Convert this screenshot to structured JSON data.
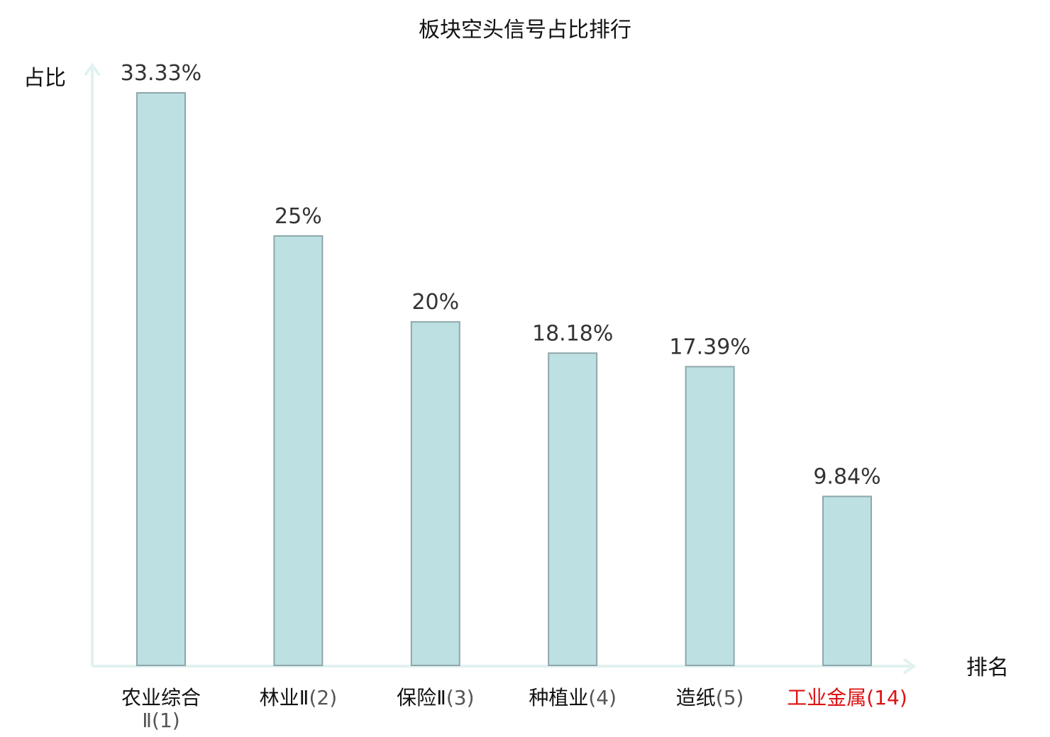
{
  "chart_data": {
    "type": "bar",
    "title": "板块空头信号占比排行",
    "ylabel": "占比",
    "xlabel": "排名",
    "ylim": [
      0,
      35
    ],
    "grid": false,
    "categories": [
      {
        "name": "农业综合Ⅱ",
        "rank": "(1)",
        "highlight": false
      },
      {
        "name": "林业Ⅱ",
        "rank": "(2)",
        "highlight": false
      },
      {
        "name": "保险Ⅱ",
        "rank": "(3)",
        "highlight": false
      },
      {
        "name": "种植业",
        "rank": "(4)",
        "highlight": false
      },
      {
        "name": "造纸",
        "rank": "(5)",
        "highlight": false
      },
      {
        "name": "工业金属",
        "rank": "(14)",
        "highlight": true
      }
    ],
    "values": [
      33.33,
      25,
      20,
      18.18,
      17.39,
      9.84
    ],
    "value_labels": [
      "33.33%",
      "25%",
      "20%",
      "18.18%",
      "17.39%",
      "9.84%"
    ],
    "colors": {
      "bar_fill": "#bde0e3",
      "bar_stroke": "#8ea7aa",
      "axis": "#e1f2f0",
      "highlight_label": "#dd1111"
    }
  }
}
